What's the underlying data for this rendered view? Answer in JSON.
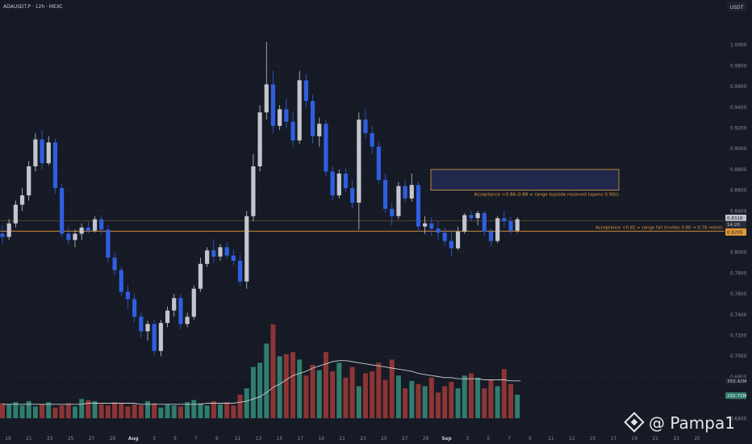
{
  "header": {
    "symbol": "ADAUSDT.P · 12h · MEXC",
    "currency": "USDT"
  },
  "watermark": "@ Pampa1",
  "colors": {
    "background": "#161a25",
    "grid": "#1f2330",
    "bull": "#c3c6ce",
    "bear": "#2f5fe0",
    "vol_up": "#2f7d6d",
    "vol_down": "#8c3535",
    "level": "#e39a3b",
    "ma": "#c9ccd3",
    "text": "#8c909c"
  },
  "chart_data": {
    "type": "candlestick",
    "title": "",
    "y_axis": {
      "ticks": [
        "1.0000",
        "0.9800",
        "0.9600",
        "0.9400",
        "0.9200",
        "0.9000",
        "0.8800",
        "0.8600",
        "0.8400",
        "0.8200",
        "0.8000",
        "0.7800",
        "0.7600",
        "0.7400",
        "0.7200",
        "0.7000",
        "0.6800",
        "0.6600",
        "0.6400"
      ],
      "range": [
        0.6351,
        1.0203
      ]
    },
    "x_axis": {
      "ticks": [
        "19",
        "21",
        "23",
        "25",
        "27",
        "29",
        "Aug",
        "3",
        "5",
        "7",
        "9",
        "11",
        "13",
        "15",
        "17",
        "19",
        "21",
        "23",
        "25",
        "27",
        "29",
        "Sep",
        "3",
        "5",
        "7",
        "9",
        "11",
        "13",
        "15",
        "17",
        "19",
        "21",
        "23",
        "25"
      ]
    },
    "candles": [
      {
        "o": 0.818,
        "h": 0.826,
        "l": 0.808,
        "c": 0.815
      },
      {
        "o": 0.815,
        "h": 0.832,
        "l": 0.812,
        "c": 0.828
      },
      {
        "o": 0.828,
        "h": 0.85,
        "l": 0.824,
        "c": 0.846
      },
      {
        "o": 0.846,
        "h": 0.862,
        "l": 0.84,
        "c": 0.855
      },
      {
        "o": 0.855,
        "h": 0.888,
        "l": 0.85,
        "c": 0.883
      },
      {
        "o": 0.883,
        "h": 0.915,
        "l": 0.878,
        "c": 0.909
      },
      {
        "o": 0.909,
        "h": 0.918,
        "l": 0.88,
        "c": 0.886
      },
      {
        "o": 0.886,
        "h": 0.912,
        "l": 0.884,
        "c": 0.906
      },
      {
        "o": 0.906,
        "h": 0.91,
        "l": 0.857,
        "c": 0.862
      },
      {
        "o": 0.862,
        "h": 0.866,
        "l": 0.815,
        "c": 0.818
      },
      {
        "o": 0.818,
        "h": 0.825,
        "l": 0.808,
        "c": 0.812
      },
      {
        "o": 0.812,
        "h": 0.822,
        "l": 0.805,
        "c": 0.818
      },
      {
        "o": 0.818,
        "h": 0.828,
        "l": 0.812,
        "c": 0.824
      },
      {
        "o": 0.824,
        "h": 0.83,
        "l": 0.818,
        "c": 0.821
      },
      {
        "o": 0.821,
        "h": 0.835,
        "l": 0.819,
        "c": 0.832
      },
      {
        "o": 0.832,
        "h": 0.836,
        "l": 0.818,
        "c": 0.822
      },
      {
        "o": 0.822,
        "h": 0.826,
        "l": 0.79,
        "c": 0.795
      },
      {
        "o": 0.795,
        "h": 0.8,
        "l": 0.778,
        "c": 0.783
      },
      {
        "o": 0.783,
        "h": 0.786,
        "l": 0.758,
        "c": 0.762
      },
      {
        "o": 0.762,
        "h": 0.768,
        "l": 0.745,
        "c": 0.755
      },
      {
        "o": 0.755,
        "h": 0.76,
        "l": 0.733,
        "c": 0.738
      },
      {
        "o": 0.738,
        "h": 0.742,
        "l": 0.718,
        "c": 0.724
      },
      {
        "o": 0.724,
        "h": 0.734,
        "l": 0.715,
        "c": 0.731
      },
      {
        "o": 0.731,
        "h": 0.735,
        "l": 0.7,
        "c": 0.705
      },
      {
        "o": 0.705,
        "h": 0.735,
        "l": 0.7,
        "c": 0.732
      },
      {
        "o": 0.732,
        "h": 0.748,
        "l": 0.728,
        "c": 0.744
      },
      {
        "o": 0.744,
        "h": 0.76,
        "l": 0.738,
        "c": 0.756
      },
      {
        "o": 0.756,
        "h": 0.76,
        "l": 0.726,
        "c": 0.731
      },
      {
        "o": 0.731,
        "h": 0.742,
        "l": 0.728,
        "c": 0.738
      },
      {
        "o": 0.738,
        "h": 0.768,
        "l": 0.735,
        "c": 0.765
      },
      {
        "o": 0.765,
        "h": 0.795,
        "l": 0.762,
        "c": 0.789
      },
      {
        "o": 0.789,
        "h": 0.805,
        "l": 0.786,
        "c": 0.802
      },
      {
        "o": 0.802,
        "h": 0.812,
        "l": 0.79,
        "c": 0.796
      },
      {
        "o": 0.796,
        "h": 0.808,
        "l": 0.792,
        "c": 0.805
      },
      {
        "o": 0.805,
        "h": 0.81,
        "l": 0.794,
        "c": 0.797
      },
      {
        "o": 0.797,
        "h": 0.803,
        "l": 0.788,
        "c": 0.792
      },
      {
        "o": 0.792,
        "h": 0.798,
        "l": 0.768,
        "c": 0.772
      },
      {
        "o": 0.772,
        "h": 0.84,
        "l": 0.765,
        "c": 0.835
      },
      {
        "o": 0.835,
        "h": 0.895,
        "l": 0.83,
        "c": 0.883
      },
      {
        "o": 0.883,
        "h": 0.942,
        "l": 0.878,
        "c": 0.935
      },
      {
        "o": 0.935,
        "h": 1.003,
        "l": 0.928,
        "c": 0.962
      },
      {
        "o": 0.962,
        "h": 0.975,
        "l": 0.915,
        "c": 0.922
      },
      {
        "o": 0.922,
        "h": 0.942,
        "l": 0.918,
        "c": 0.938
      },
      {
        "o": 0.938,
        "h": 0.948,
        "l": 0.92,
        "c": 0.926
      },
      {
        "o": 0.926,
        "h": 0.935,
        "l": 0.902,
        "c": 0.908
      },
      {
        "o": 0.908,
        "h": 0.975,
        "l": 0.905,
        "c": 0.966
      },
      {
        "o": 0.966,
        "h": 0.972,
        "l": 0.94,
        "c": 0.946
      },
      {
        "o": 0.946,
        "h": 0.952,
        "l": 0.905,
        "c": 0.912
      },
      {
        "o": 0.912,
        "h": 0.93,
        "l": 0.902,
        "c": 0.924
      },
      {
        "o": 0.924,
        "h": 0.928,
        "l": 0.873,
        "c": 0.878
      },
      {
        "o": 0.878,
        "h": 0.884,
        "l": 0.85,
        "c": 0.855
      },
      {
        "o": 0.855,
        "h": 0.88,
        "l": 0.852,
        "c": 0.876
      },
      {
        "o": 0.876,
        "h": 0.882,
        "l": 0.858,
        "c": 0.862
      },
      {
        "o": 0.862,
        "h": 0.87,
        "l": 0.843,
        "c": 0.848
      },
      {
        "o": 0.848,
        "h": 0.935,
        "l": 0.822,
        "c": 0.928
      },
      {
        "o": 0.928,
        "h": 0.938,
        "l": 0.91,
        "c": 0.915
      },
      {
        "o": 0.915,
        "h": 0.922,
        "l": 0.895,
        "c": 0.902
      },
      {
        "o": 0.902,
        "h": 0.907,
        "l": 0.866,
        "c": 0.87
      },
      {
        "o": 0.87,
        "h": 0.876,
        "l": 0.838,
        "c": 0.842
      },
      {
        "o": 0.842,
        "h": 0.848,
        "l": 0.826,
        "c": 0.835
      },
      {
        "o": 0.835,
        "h": 0.868,
        "l": 0.832,
        "c": 0.864
      },
      {
        "o": 0.864,
        "h": 0.87,
        "l": 0.848,
        "c": 0.852
      },
      {
        "o": 0.852,
        "h": 0.876,
        "l": 0.849,
        "c": 0.865
      },
      {
        "o": 0.865,
        "h": 0.868,
        "l": 0.82,
        "c": 0.825
      },
      {
        "o": 0.825,
        "h": 0.835,
        "l": 0.818,
        "c": 0.828
      },
      {
        "o": 0.828,
        "h": 0.834,
        "l": 0.816,
        "c": 0.823
      },
      {
        "o": 0.823,
        "h": 0.83,
        "l": 0.812,
        "c": 0.819
      },
      {
        "o": 0.819,
        "h": 0.824,
        "l": 0.806,
        "c": 0.811
      },
      {
        "o": 0.811,
        "h": 0.822,
        "l": 0.796,
        "c": 0.804
      },
      {
        "o": 0.804,
        "h": 0.825,
        "l": 0.802,
        "c": 0.82
      },
      {
        "o": 0.82,
        "h": 0.838,
        "l": 0.818,
        "c": 0.836
      },
      {
        "o": 0.836,
        "h": 0.84,
        "l": 0.83,
        "c": 0.833
      },
      {
        "o": 0.833,
        "h": 0.84,
        "l": 0.826,
        "c": 0.838
      },
      {
        "o": 0.838,
        "h": 0.84,
        "l": 0.816,
        "c": 0.82
      },
      {
        "o": 0.82,
        "h": 0.823,
        "l": 0.806,
        "c": 0.811
      },
      {
        "o": 0.811,
        "h": 0.835,
        "l": 0.809,
        "c": 0.833
      },
      {
        "o": 0.833,
        "h": 0.84,
        "l": 0.824,
        "c": 0.83
      },
      {
        "o": 0.83,
        "h": 0.834,
        "l": 0.818,
        "c": 0.821
      },
      {
        "o": 0.821,
        "h": 0.834,
        "l": 0.819,
        "c": 0.832
      }
    ],
    "volume": {
      "values": [
        14,
        13,
        15,
        12,
        16,
        11,
        13,
        15,
        10,
        12,
        14,
        11,
        18,
        17,
        16,
        13,
        12,
        15,
        14,
        11,
        13,
        12,
        16,
        14,
        10,
        13,
        12,
        11,
        15,
        17,
        14,
        12,
        16,
        13,
        15,
        12,
        22,
        28,
        48,
        52,
        70,
        88,
        58,
        60,
        62,
        55,
        40,
        50,
        45,
        62,
        44,
        52,
        38,
        48,
        30,
        42,
        44,
        52,
        36,
        55,
        40,
        28,
        35,
        32,
        30,
        38,
        24,
        30,
        34,
        28,
        40,
        42,
        38,
        28,
        36,
        30,
        46,
        32,
        22
      ],
      "ma_values": [
        13,
        13,
        13,
        13,
        13,
        13,
        13,
        13,
        13,
        13,
        13,
        13,
        13,
        14,
        14,
        14,
        14,
        14,
        14,
        14,
        14,
        13,
        13,
        13,
        13,
        13,
        13,
        13,
        13,
        13,
        13,
        14,
        14,
        14,
        14,
        14,
        15,
        16,
        18,
        20,
        24,
        29,
        32,
        36,
        40,
        42,
        44,
        47,
        49,
        51,
        53,
        54,
        54,
        53,
        52,
        51,
        50,
        49,
        48,
        47,
        46,
        45,
        44,
        42,
        41,
        40,
        39,
        38,
        38,
        37,
        37,
        37,
        37,
        36,
        36,
        36,
        36,
        35,
        35
      ],
      "ma_label": "350.42M",
      "last_label": "292.71M"
    },
    "levels": [
      {
        "price": 0.8205,
        "label": "Acceptance <0.82 = range fail (invites 0.80 → 0.78 retest)"
      },
      {
        "price": 0.8305,
        "label": ""
      }
    ],
    "zone": {
      "price_low": 0.86,
      "price_high": 0.88,
      "label": "Acceptance >0.86–0.88 = range topside resolved (opens 0.90s)"
    },
    "price_tags": {
      "last": "0.8318",
      "timer": "14:20",
      "level": "0.8205"
    }
  }
}
